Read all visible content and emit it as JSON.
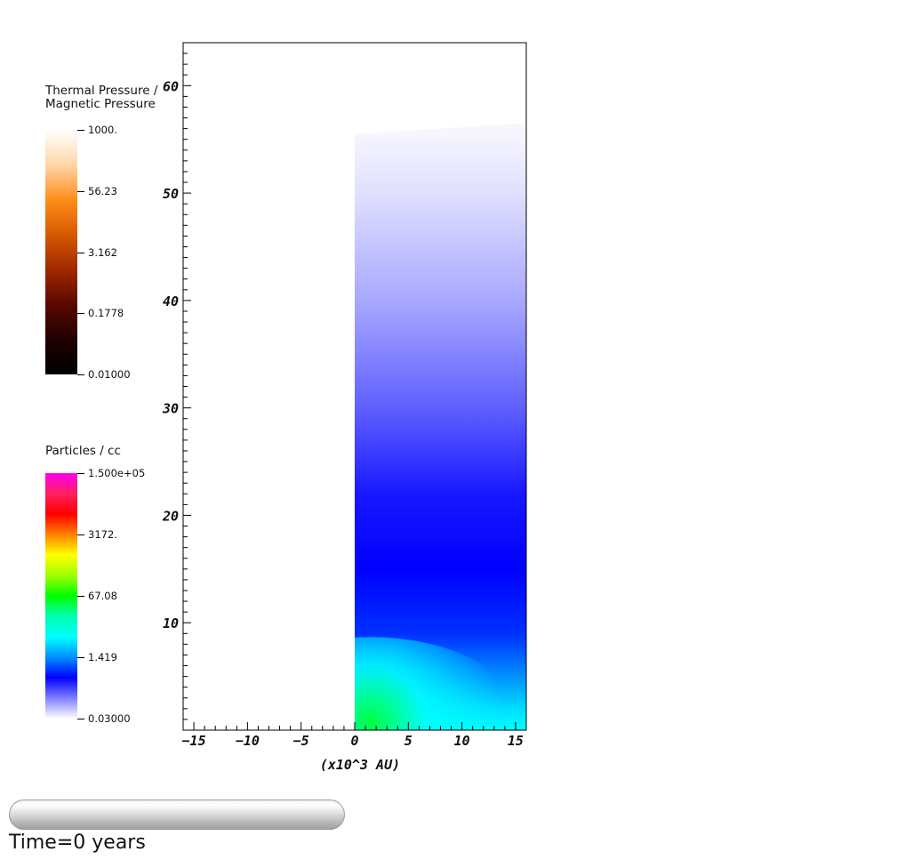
{
  "legends": [
    {
      "title_line1": "Thermal Pressure /",
      "title_line2": "Magnetic Pressure",
      "tick_labels": [
        "1000.",
        "56.23",
        "3.162",
        "0.1778",
        "0.01000"
      ],
      "colors": [
        "#ffffff",
        "#ffd6a8",
        "#ff8c1a",
        "#d65a00",
        "#a02800",
        "#5a0800",
        "#200000",
        "#000000"
      ]
    },
    {
      "title_line1": "Particles / cc",
      "title_line2": "",
      "tick_labels": [
        "1.500e+05",
        "3172.",
        "67.08",
        "1.419",
        "0.03000"
      ],
      "colors": [
        "#ff00ee",
        "#ff2060",
        "#ff0000",
        "#ff8000",
        "#ffff00",
        "#a0ff00",
        "#00ff00",
        "#00ffb0",
        "#00ffff",
        "#0090ff",
        "#0000ff",
        "#8080ff",
        "#ffffff"
      ]
    }
  ],
  "chart_data": {
    "type": "heatmap",
    "x": {
      "label": "(x10^3 AU)",
      "range": [
        -16,
        16
      ],
      "ticks": [
        -15,
        -10,
        -5,
        0,
        5,
        10,
        15
      ]
    },
    "y": {
      "range": [
        0,
        64
      ],
      "ticks": [
        10,
        20,
        30,
        40,
        50,
        60
      ]
    },
    "domain": {
      "x_min": 0,
      "x_max": 16,
      "y_max_at_x0": 55.5,
      "y_max_at_x16": 56.5
    },
    "field": "Particles / cc",
    "color_profile_y": [
      {
        "y": 55.5,
        "color": "#f6f6ff"
      },
      {
        "y": 50,
        "color": "#e0e0ff"
      },
      {
        "y": 40,
        "color": "#a8a8ff"
      },
      {
        "y": 30,
        "color": "#6060ff"
      },
      {
        "y": 22,
        "color": "#1818ff"
      },
      {
        "y": 15,
        "color": "#0000ff"
      },
      {
        "y": 9,
        "color": "#0030ff"
      },
      {
        "y": 5,
        "color": "#0090ff"
      },
      {
        "y": 2,
        "color": "#00ddff"
      },
      {
        "y": 0,
        "color": "#00ffff"
      }
    ],
    "core": {
      "x": 1.5,
      "y": 0.8,
      "color": "#00ff40"
    }
  },
  "progress": {
    "fraction": 0
  },
  "time_label": "Time=0 years"
}
